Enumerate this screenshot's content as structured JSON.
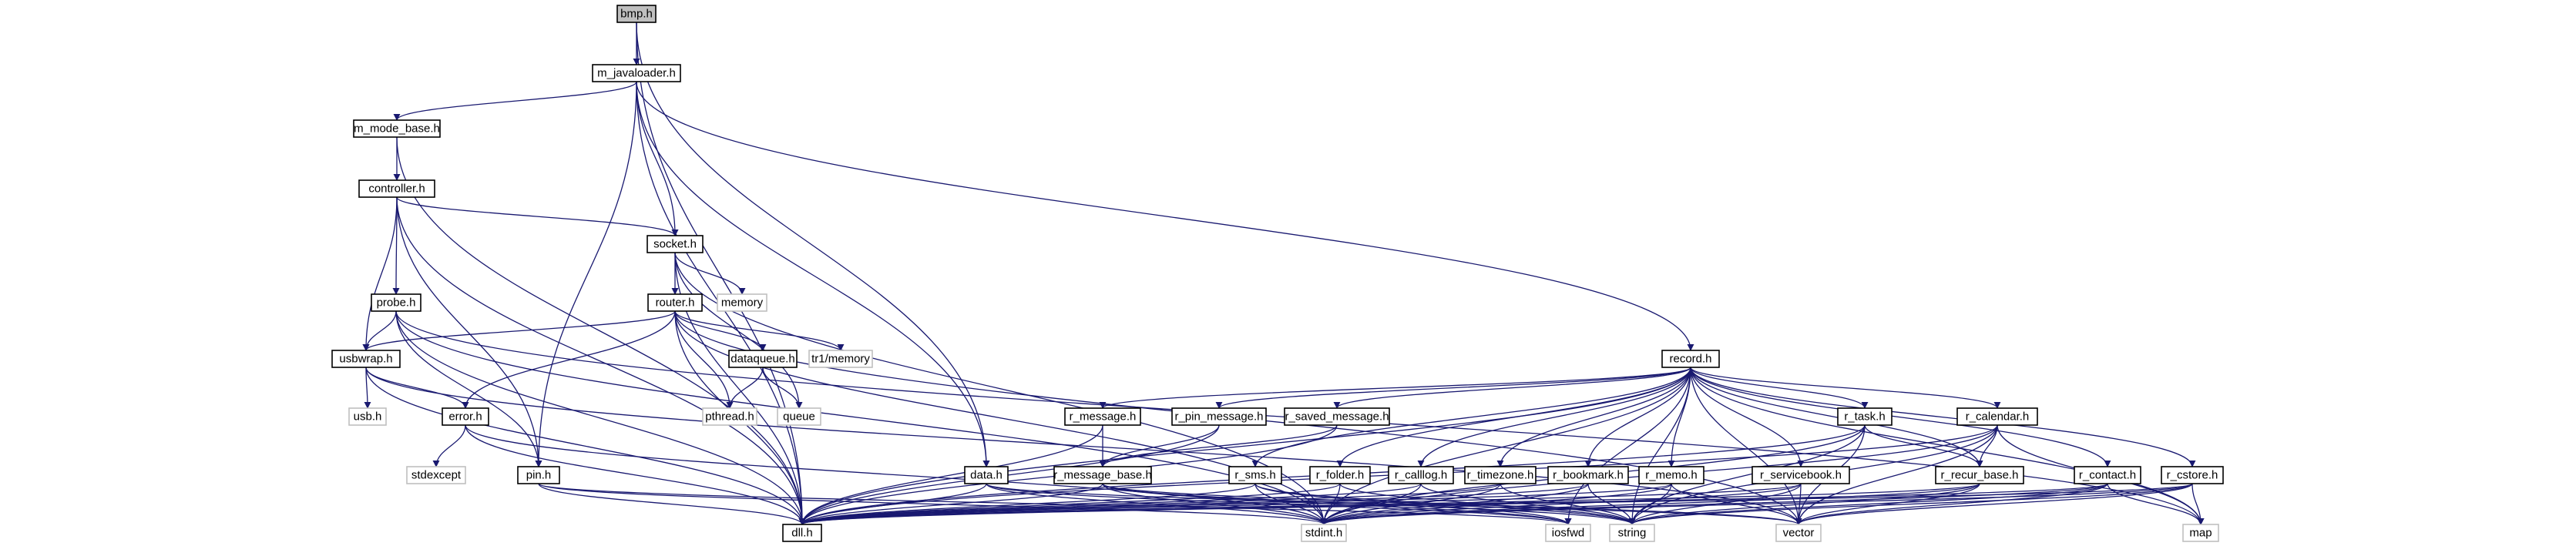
{
  "diagram": {
    "type": "include-dependency-graph",
    "edge_color": "#191970",
    "root_fill": "#bfbfbf",
    "system_header_border": "#c0c0c0",
    "nodes": [
      {
        "id": "bmp",
        "label": "bmp.h",
        "kind": "root"
      },
      {
        "id": "javaloader",
        "label": "m_javaloader.h",
        "kind": "file"
      },
      {
        "id": "modebase",
        "label": "m_mode_base.h",
        "kind": "file"
      },
      {
        "id": "controller",
        "label": "controller.h",
        "kind": "file"
      },
      {
        "id": "socket",
        "label": "socket.h",
        "kind": "file"
      },
      {
        "id": "memory",
        "label": "memory",
        "kind": "system"
      },
      {
        "id": "probe",
        "label": "probe.h",
        "kind": "file"
      },
      {
        "id": "router",
        "label": "router.h",
        "kind": "file"
      },
      {
        "id": "usbwrap",
        "label": "usbwrap.h",
        "kind": "file"
      },
      {
        "id": "dataqueue",
        "label": "dataqueue.h",
        "kind": "file"
      },
      {
        "id": "tr1memory",
        "label": "tr1/memory",
        "kind": "system"
      },
      {
        "id": "usb",
        "label": "usb.h",
        "kind": "system"
      },
      {
        "id": "errorh",
        "label": "error.h",
        "kind": "file"
      },
      {
        "id": "pthread",
        "label": "pthread.h",
        "kind": "system"
      },
      {
        "id": "queue",
        "label": "queue",
        "kind": "system"
      },
      {
        "id": "stdexcept",
        "label": "stdexcept",
        "kind": "system"
      },
      {
        "id": "pin",
        "label": "pin.h",
        "kind": "file"
      },
      {
        "id": "record",
        "label": "record.h",
        "kind": "file"
      },
      {
        "id": "rmessage",
        "label": "r_message.h",
        "kind": "file"
      },
      {
        "id": "rpinmsg",
        "label": "r_pin_message.h",
        "kind": "file"
      },
      {
        "id": "rsaved",
        "label": "r_saved_message.h",
        "kind": "file"
      },
      {
        "id": "rtask",
        "label": "r_task.h",
        "kind": "file"
      },
      {
        "id": "rcalendar",
        "label": "r_calendar.h",
        "kind": "file"
      },
      {
        "id": "datah",
        "label": "data.h",
        "kind": "file"
      },
      {
        "id": "rmsgbase",
        "label": "r_message_base.h",
        "kind": "file"
      },
      {
        "id": "rsms",
        "label": "r_sms.h",
        "kind": "file"
      },
      {
        "id": "rfolder",
        "label": "r_folder.h",
        "kind": "file"
      },
      {
        "id": "rcalllog",
        "label": "r_calllog.h",
        "kind": "file"
      },
      {
        "id": "rtimezone",
        "label": "r_timezone.h",
        "kind": "file"
      },
      {
        "id": "rbookmark",
        "label": "r_bookmark.h",
        "kind": "file"
      },
      {
        "id": "rmemo",
        "label": "r_memo.h",
        "kind": "file"
      },
      {
        "id": "rservice",
        "label": "r_servicebook.h",
        "kind": "file"
      },
      {
        "id": "rrecur",
        "label": "r_recur_base.h",
        "kind": "file"
      },
      {
        "id": "rcontact",
        "label": "r_contact.h",
        "kind": "file"
      },
      {
        "id": "rcstore",
        "label": "r_cstore.h",
        "kind": "file"
      },
      {
        "id": "dll",
        "label": "dll.h",
        "kind": "file"
      },
      {
        "id": "stdint",
        "label": "stdint.h",
        "kind": "system"
      },
      {
        "id": "iosfwd",
        "label": "iosfwd",
        "kind": "system"
      },
      {
        "id": "string",
        "label": "string",
        "kind": "system"
      },
      {
        "id": "vector",
        "label": "vector",
        "kind": "system"
      },
      {
        "id": "map",
        "label": "map",
        "kind": "system"
      }
    ],
    "edges": [
      [
        "bmp",
        "javaloader"
      ],
      [
        "bmp",
        "dll"
      ],
      [
        "bmp",
        "datah"
      ],
      [
        "javaloader",
        "modebase"
      ],
      [
        "javaloader",
        "dll"
      ],
      [
        "javaloader",
        "pin"
      ],
      [
        "javaloader",
        "socket"
      ],
      [
        "javaloader",
        "record"
      ],
      [
        "javaloader",
        "datah"
      ],
      [
        "modebase",
        "controller"
      ],
      [
        "modebase",
        "dll"
      ],
      [
        "controller",
        "socket"
      ],
      [
        "controller",
        "probe"
      ],
      [
        "controller",
        "usbwrap"
      ],
      [
        "controller",
        "pin"
      ],
      [
        "controller",
        "dll"
      ],
      [
        "socket",
        "router"
      ],
      [
        "socket",
        "memory"
      ],
      [
        "socket",
        "dll"
      ],
      [
        "socket",
        "queue"
      ],
      [
        "socket",
        "stdint"
      ],
      [
        "probe",
        "usbwrap"
      ],
      [
        "probe",
        "pin"
      ],
      [
        "probe",
        "dll"
      ],
      [
        "probe",
        "map"
      ],
      [
        "probe",
        "stdint"
      ],
      [
        "router",
        "usbwrap"
      ],
      [
        "router",
        "dataqueue"
      ],
      [
        "router",
        "tr1memory"
      ],
      [
        "router",
        "pthread"
      ],
      [
        "router",
        "errorh"
      ],
      [
        "router",
        "dll"
      ],
      [
        "router",
        "stdint"
      ],
      [
        "router",
        "vector"
      ],
      [
        "usbwrap",
        "usb"
      ],
      [
        "usbwrap",
        "errorh"
      ],
      [
        "usbwrap",
        "dll"
      ],
      [
        "usbwrap",
        "vector"
      ],
      [
        "dataqueue",
        "pthread"
      ],
      [
        "dataqueue",
        "queue"
      ],
      [
        "errorh",
        "stdexcept"
      ],
      [
        "errorh",
        "stdint"
      ],
      [
        "errorh",
        "dll"
      ],
      [
        "pin",
        "dll"
      ],
      [
        "pin",
        "stdint"
      ],
      [
        "pin",
        "iosfwd"
      ],
      [
        "record",
        "rmessage"
      ],
      [
        "record",
        "rpinmsg"
      ],
      [
        "record",
        "rsaved"
      ],
      [
        "record",
        "rtask"
      ],
      [
        "record",
        "rcalendar"
      ],
      [
        "record",
        "rsms"
      ],
      [
        "record",
        "rfolder"
      ],
      [
        "record",
        "rcalllog"
      ],
      [
        "record",
        "rtimezone"
      ],
      [
        "record",
        "rbookmark"
      ],
      [
        "record",
        "rmemo"
      ],
      [
        "record",
        "rservice"
      ],
      [
        "record",
        "rrecur"
      ],
      [
        "record",
        "rcontact"
      ],
      [
        "record",
        "rcstore"
      ],
      [
        "record",
        "dll"
      ],
      [
        "record",
        "stdint"
      ],
      [
        "record",
        "iosfwd"
      ],
      [
        "record",
        "string"
      ],
      [
        "record",
        "vector"
      ],
      [
        "record",
        "map"
      ],
      [
        "rmessage",
        "rmsgbase"
      ],
      [
        "rmessage",
        "dll"
      ],
      [
        "rpinmsg",
        "rmsgbase"
      ],
      [
        "rpinmsg",
        "dll"
      ],
      [
        "rsaved",
        "rmsgbase"
      ],
      [
        "rsaved",
        "dll"
      ],
      [
        "rmsgbase",
        "dll"
      ],
      [
        "rmsgbase",
        "stdint"
      ],
      [
        "rmsgbase",
        "iosfwd"
      ],
      [
        "rmsgbase",
        "string"
      ],
      [
        "rmsgbase",
        "vector"
      ],
      [
        "rtask",
        "rrecur"
      ],
      [
        "rtask",
        "dll"
      ],
      [
        "rtask",
        "stdint"
      ],
      [
        "rtask",
        "string"
      ],
      [
        "rtask",
        "vector"
      ],
      [
        "rcalendar",
        "rrecur"
      ],
      [
        "rcalendar",
        "dll"
      ],
      [
        "rcalendar",
        "stdint"
      ],
      [
        "rcalendar",
        "string"
      ],
      [
        "rcalendar",
        "vector"
      ],
      [
        "rcalendar",
        "map"
      ],
      [
        "rrecur",
        "dll"
      ],
      [
        "rrecur",
        "stdint"
      ],
      [
        "rrecur",
        "string"
      ],
      [
        "rrecur",
        "vector"
      ],
      [
        "datah",
        "dll"
      ],
      [
        "datah",
        "stdint"
      ],
      [
        "datah",
        "iosfwd"
      ],
      [
        "datah",
        "vector"
      ],
      [
        "rsms",
        "dll"
      ],
      [
        "rsms",
        "stdint"
      ],
      [
        "rsms",
        "iosfwd"
      ],
      [
        "rsms",
        "string"
      ],
      [
        "rfolder",
        "dll"
      ],
      [
        "rfolder",
        "stdint"
      ],
      [
        "rfolder",
        "string"
      ],
      [
        "rcalllog",
        "dll"
      ],
      [
        "rcalllog",
        "stdint"
      ],
      [
        "rcalllog",
        "string"
      ],
      [
        "rtimezone",
        "dll"
      ],
      [
        "rtimezone",
        "stdint"
      ],
      [
        "rtimezone",
        "string"
      ],
      [
        "rbookmark",
        "dll"
      ],
      [
        "rbookmark",
        "stdint"
      ],
      [
        "rbookmark",
        "string"
      ],
      [
        "rmemo",
        "dll"
      ],
      [
        "rmemo",
        "stdint"
      ],
      [
        "rmemo",
        "string"
      ],
      [
        "rmemo",
        "vector"
      ],
      [
        "rservice",
        "dll"
      ],
      [
        "rservice",
        "stdint"
      ],
      [
        "rservice",
        "string"
      ],
      [
        "rservice",
        "vector"
      ],
      [
        "rcontact",
        "dll"
      ],
      [
        "rcontact",
        "stdint"
      ],
      [
        "rcontact",
        "string"
      ],
      [
        "rcontact",
        "vector"
      ],
      [
        "rcontact",
        "map"
      ],
      [
        "rcstore",
        "dll"
      ],
      [
        "rcstore",
        "stdint"
      ],
      [
        "rcstore",
        "string"
      ],
      [
        "rcstore",
        "vector"
      ],
      [
        "rcstore",
        "map"
      ]
    ]
  }
}
